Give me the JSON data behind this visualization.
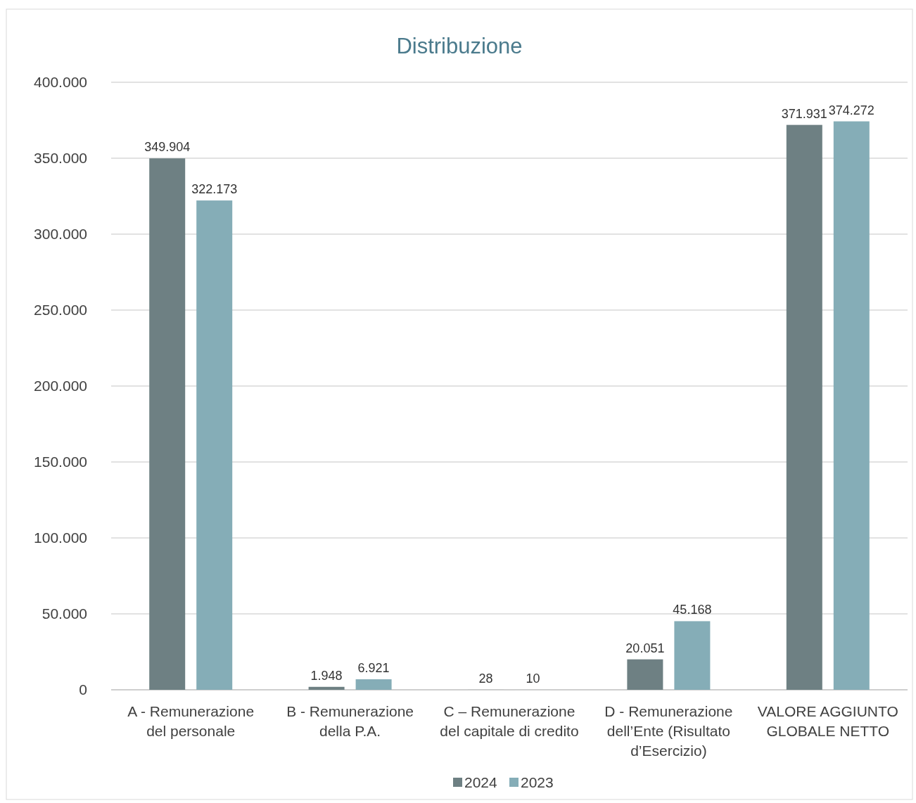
{
  "chart_data": {
    "type": "bar",
    "title": "Distribuzione",
    "categories": [
      "A - Remunerazione del personale",
      "B - Remunerazione della P.A.",
      "C – Remunerazione del capitale di credito",
      "D - Remunerazione dell’Ente (Risultato d’Esercizio)",
      "VALORE AGGIUNTO GLOBALE NETTO"
    ],
    "series": [
      {
        "name": "2024",
        "color": "#6e8083",
        "values": [
          349904,
          1948,
          28,
          20051,
          371931
        ],
        "value_labels": [
          "349.904",
          "1.948",
          "28",
          "20.051",
          "371.931"
        ]
      },
      {
        "name": "2023",
        "color": "#85adb7",
        "values": [
          322173,
          6921,
          10,
          45168,
          374272
        ],
        "value_labels": [
          "322.173",
          "6.921",
          "10",
          "45.168",
          "374.272"
        ]
      }
    ],
    "ylim": [
      0,
      400000
    ],
    "yticks": [
      {
        "value": 0,
        "label": "0"
      },
      {
        "value": 50000,
        "label": "50.000"
      },
      {
        "value": 100000,
        "label": "100.000"
      },
      {
        "value": 150000,
        "label": "150.000"
      },
      {
        "value": 200000,
        "label": "200.000"
      },
      {
        "value": 250000,
        "label": "250.000"
      },
      {
        "value": 300000,
        "label": "300.000"
      },
      {
        "value": 350000,
        "label": "350.000"
      },
      {
        "value": 400000,
        "label": "400.000"
      }
    ],
    "grid": "y",
    "legend": "bottom"
  }
}
